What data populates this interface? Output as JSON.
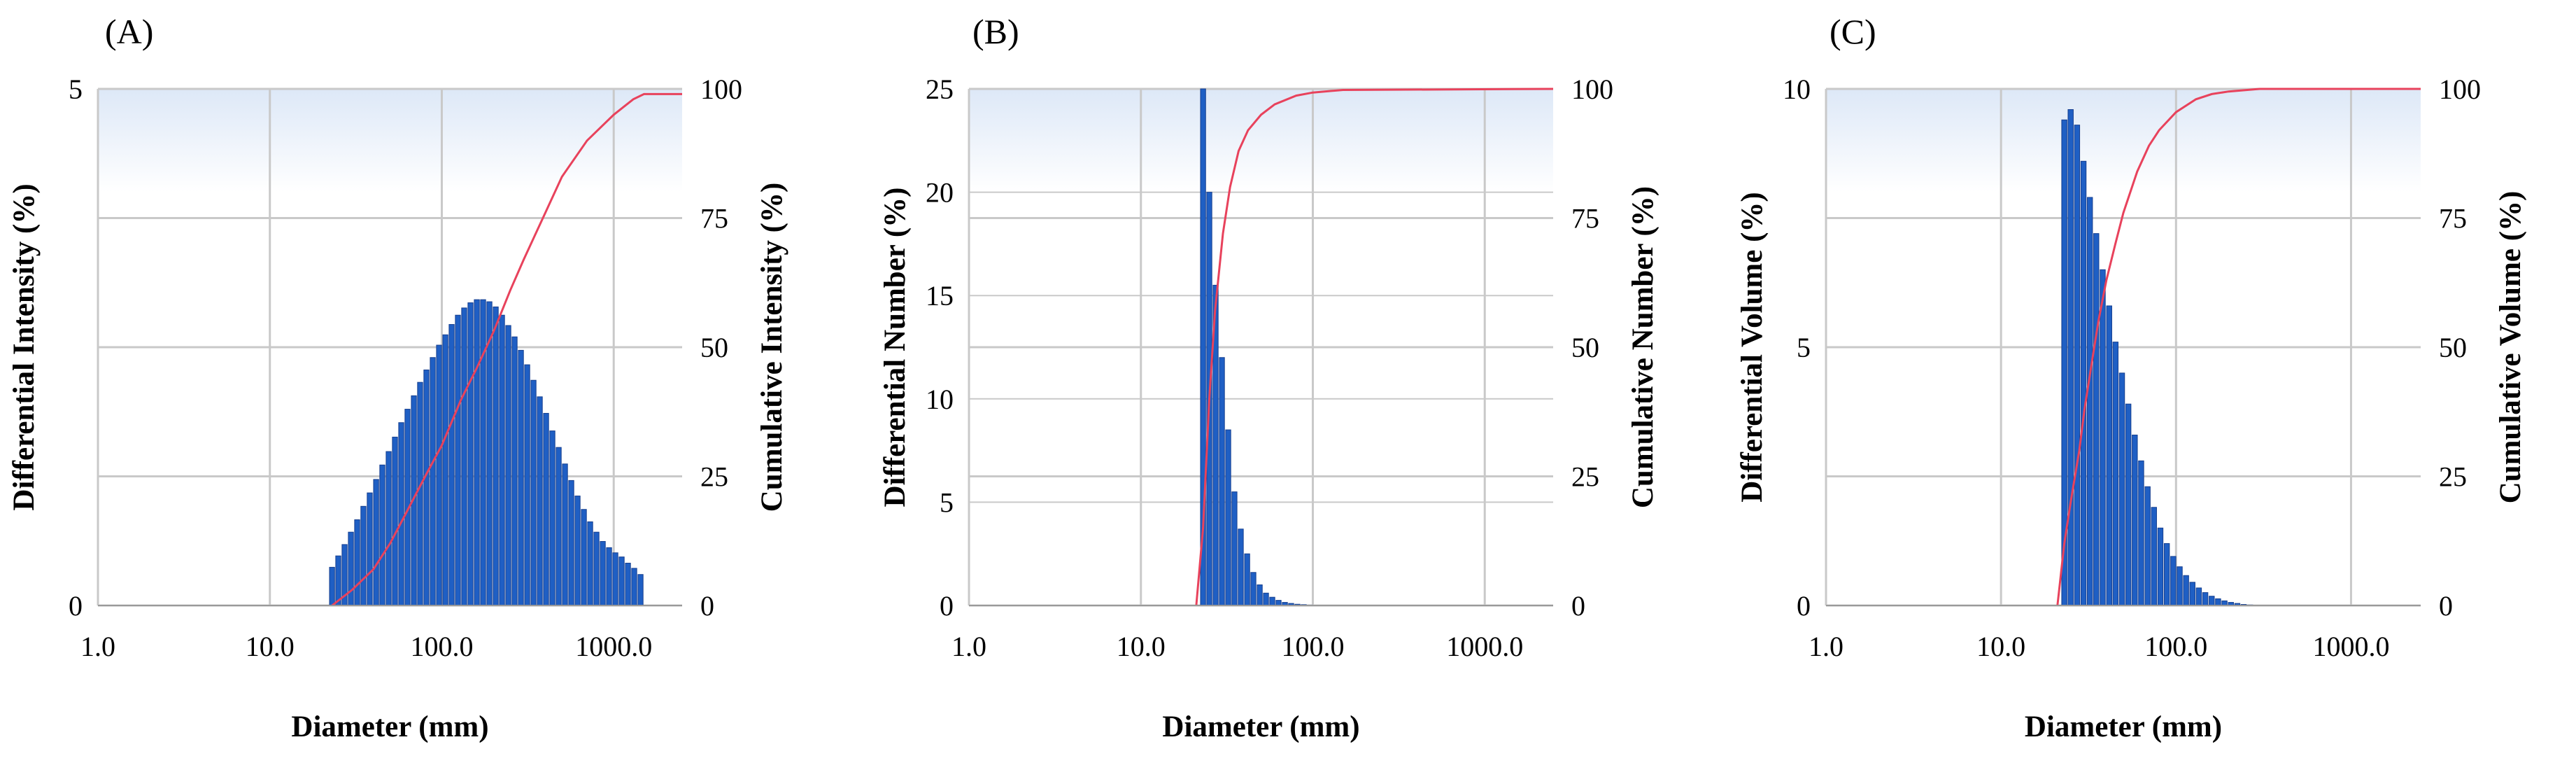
{
  "figure": {
    "colors": {
      "bar_fill": "#1f5fc4",
      "bar_edge": "#163f8f",
      "cumulative_line": "#e8425c",
      "grid": "#c9c9c9",
      "plot_bg_top": "#dde8f7"
    }
  },
  "chart_data": [
    {
      "panel_label": "(A)",
      "type": "bar",
      "xlabel": "Diameter (mm)",
      "ylabel": "Differential Intensity (%)",
      "y2label": "Cumulative Intensity (%)",
      "xscale": "log",
      "xlim": [
        1,
        2500
      ],
      "ylim": [
        0,
        5
      ],
      "y2lim": [
        0,
        100
      ],
      "xticks": [
        1,
        10,
        100,
        1000
      ],
      "xtick_labels": [
        "1.0",
        "10.0",
        "100.0",
        "1000.0"
      ],
      "yticks": [
        0,
        5
      ],
      "ytick_labels": [
        "0",
        "5"
      ],
      "y2ticks": [
        0,
        25,
        50,
        75,
        100
      ],
      "y2tick_labels": [
        "0",
        "25",
        "50",
        "75",
        "100"
      ],
      "grid": true,
      "bins": [
        23.0,
        25.0,
        27.2,
        29.6,
        32.2,
        35.0,
        38.1,
        41.5,
        45.1,
        49.1,
        53.4,
        58.1,
        63.2,
        68.8,
        74.8,
        81.4,
        88.6,
        96.4,
        104.9,
        114.1,
        124.1,
        135.0,
        146.9,
        159.9,
        173.9,
        189.2,
        205.9,
        224.0,
        243.7,
        265.1,
        288.5,
        313.9,
        341.5,
        371.5,
        404.2,
        439.8,
        478.5,
        520.6,
        566.4,
        616.2,
        670.5,
        729.5,
        793.6,
        863.5,
        939.5,
        1022.0,
        1112.0,
        1210.0,
        1316.0,
        1432.0
      ],
      "values": [
        0.37,
        0.48,
        0.59,
        0.71,
        0.83,
        0.96,
        1.09,
        1.22,
        1.36,
        1.49,
        1.63,
        1.77,
        1.9,
        2.03,
        2.16,
        2.28,
        2.4,
        2.52,
        2.62,
        2.72,
        2.81,
        2.88,
        2.93,
        2.96,
        2.96,
        2.94,
        2.89,
        2.81,
        2.71,
        2.6,
        2.47,
        2.33,
        2.18,
        2.02,
        1.86,
        1.69,
        1.53,
        1.37,
        1.21,
        1.06,
        0.93,
        0.81,
        0.71,
        0.62,
        0.56,
        0.51,
        0.47,
        0.41,
        0.36,
        0.3
      ],
      "cumulative": {
        "x": [
          23,
          30,
          40,
          50,
          60,
          80,
          100,
          130,
          160,
          200,
          250,
          300,
          400,
          500,
          700,
          1000,
          1300,
          1500,
          2500
        ],
        "y": [
          0,
          3,
          7,
          12,
          17,
          25,
          31,
          40,
          46,
          53,
          61,
          67,
          76,
          83,
          90,
          95,
          98,
          99,
          99
        ]
      }
    },
    {
      "panel_label": "(B)",
      "type": "bar",
      "xlabel": "Diameter (mm)",
      "ylabel": "Differential Number (%)",
      "y2label": "Cumulative Number (%)",
      "xscale": "log",
      "xlim": [
        1,
        2500
      ],
      "ylim": [
        0,
        25
      ],
      "y2lim": [
        0,
        100
      ],
      "xticks": [
        1,
        10,
        100,
        1000
      ],
      "xtick_labels": [
        "1.0",
        "10.0",
        "100.0",
        "1000.0"
      ],
      "yticks": [
        0,
        5,
        10,
        15,
        20,
        25
      ],
      "ytick_labels": [
        "0",
        "5",
        "10",
        "15",
        "20",
        "25"
      ],
      "y2ticks": [
        0,
        25,
        50,
        75,
        100
      ],
      "y2tick_labels": [
        "0",
        "25",
        "50",
        "75",
        "100"
      ],
      "grid": true,
      "bins": [
        23.0,
        25.0,
        27.2,
        29.6,
        32.2,
        35.0,
        38.1,
        41.5,
        45.1,
        49.1,
        53.4,
        58.1,
        63.2,
        68.8,
        74.8,
        81.4,
        88.6,
        96.4
      ],
      "values": [
        25.0,
        20.0,
        15.5,
        12.0,
        8.5,
        5.5,
        3.7,
        2.5,
        1.6,
        1.0,
        0.6,
        0.4,
        0.25,
        0.15,
        0.1,
        0.06,
        0.04,
        0.02
      ],
      "cumulative": {
        "x": [
          21,
          23,
          25,
          27,
          30,
          33,
          37,
          42,
          50,
          60,
          80,
          100,
          150,
          2500
        ],
        "y": [
          0,
          15,
          40,
          57,
          72,
          81,
          88,
          92,
          95,
          97,
          98.7,
          99.3,
          99.8,
          100
        ]
      }
    },
    {
      "panel_label": "(C)",
      "type": "bar",
      "xlabel": "Diameter (mm)",
      "ylabel": "Differential Volume (%)",
      "y2label": "Cumulative Volume (%)",
      "xscale": "log",
      "xlim": [
        1,
        2500
      ],
      "ylim": [
        0,
        10
      ],
      "y2lim": [
        0,
        100
      ],
      "xticks": [
        1,
        10,
        100,
        1000
      ],
      "xtick_labels": [
        "1.0",
        "10.0",
        "100.0",
        "1000.0"
      ],
      "yticks": [
        0,
        5,
        10
      ],
      "ytick_labels": [
        "0",
        "5",
        "10"
      ],
      "y2ticks": [
        0,
        25,
        50,
        75,
        100
      ],
      "y2tick_labels": [
        "0",
        "25",
        "50",
        "75",
        "100"
      ],
      "grid": true,
      "bins": [
        23.0,
        25.0,
        27.2,
        29.6,
        32.2,
        35.0,
        38.1,
        41.5,
        45.1,
        49.1,
        53.4,
        58.1,
        63.2,
        68.8,
        74.8,
        81.4,
        88.6,
        96.4,
        104.9,
        114.1,
        124.1,
        135.0,
        146.9,
        159.9,
        173.9,
        189.2,
        205.9,
        224.0,
        243.7,
        265.1
      ],
      "values": [
        9.4,
        9.6,
        9.3,
        8.6,
        7.9,
        7.2,
        6.5,
        5.8,
        5.1,
        4.5,
        3.9,
        3.3,
        2.8,
        2.3,
        1.9,
        1.5,
        1.2,
        0.95,
        0.75,
        0.58,
        0.45,
        0.34,
        0.25,
        0.18,
        0.13,
        0.09,
        0.06,
        0.04,
        0.02,
        0.01
      ],
      "cumulative": {
        "x": [
          21,
          23,
          25,
          28,
          30,
          33,
          36,
          40,
          45,
          50,
          60,
          70,
          80,
          100,
          130,
          160,
          200,
          300,
          2500
        ],
        "y": [
          0,
          12,
          20,
          30,
          38,
          47,
          55,
          63,
          70,
          76,
          84,
          89,
          92,
          95.5,
          98,
          99,
          99.5,
          100,
          100
        ]
      }
    }
  ]
}
